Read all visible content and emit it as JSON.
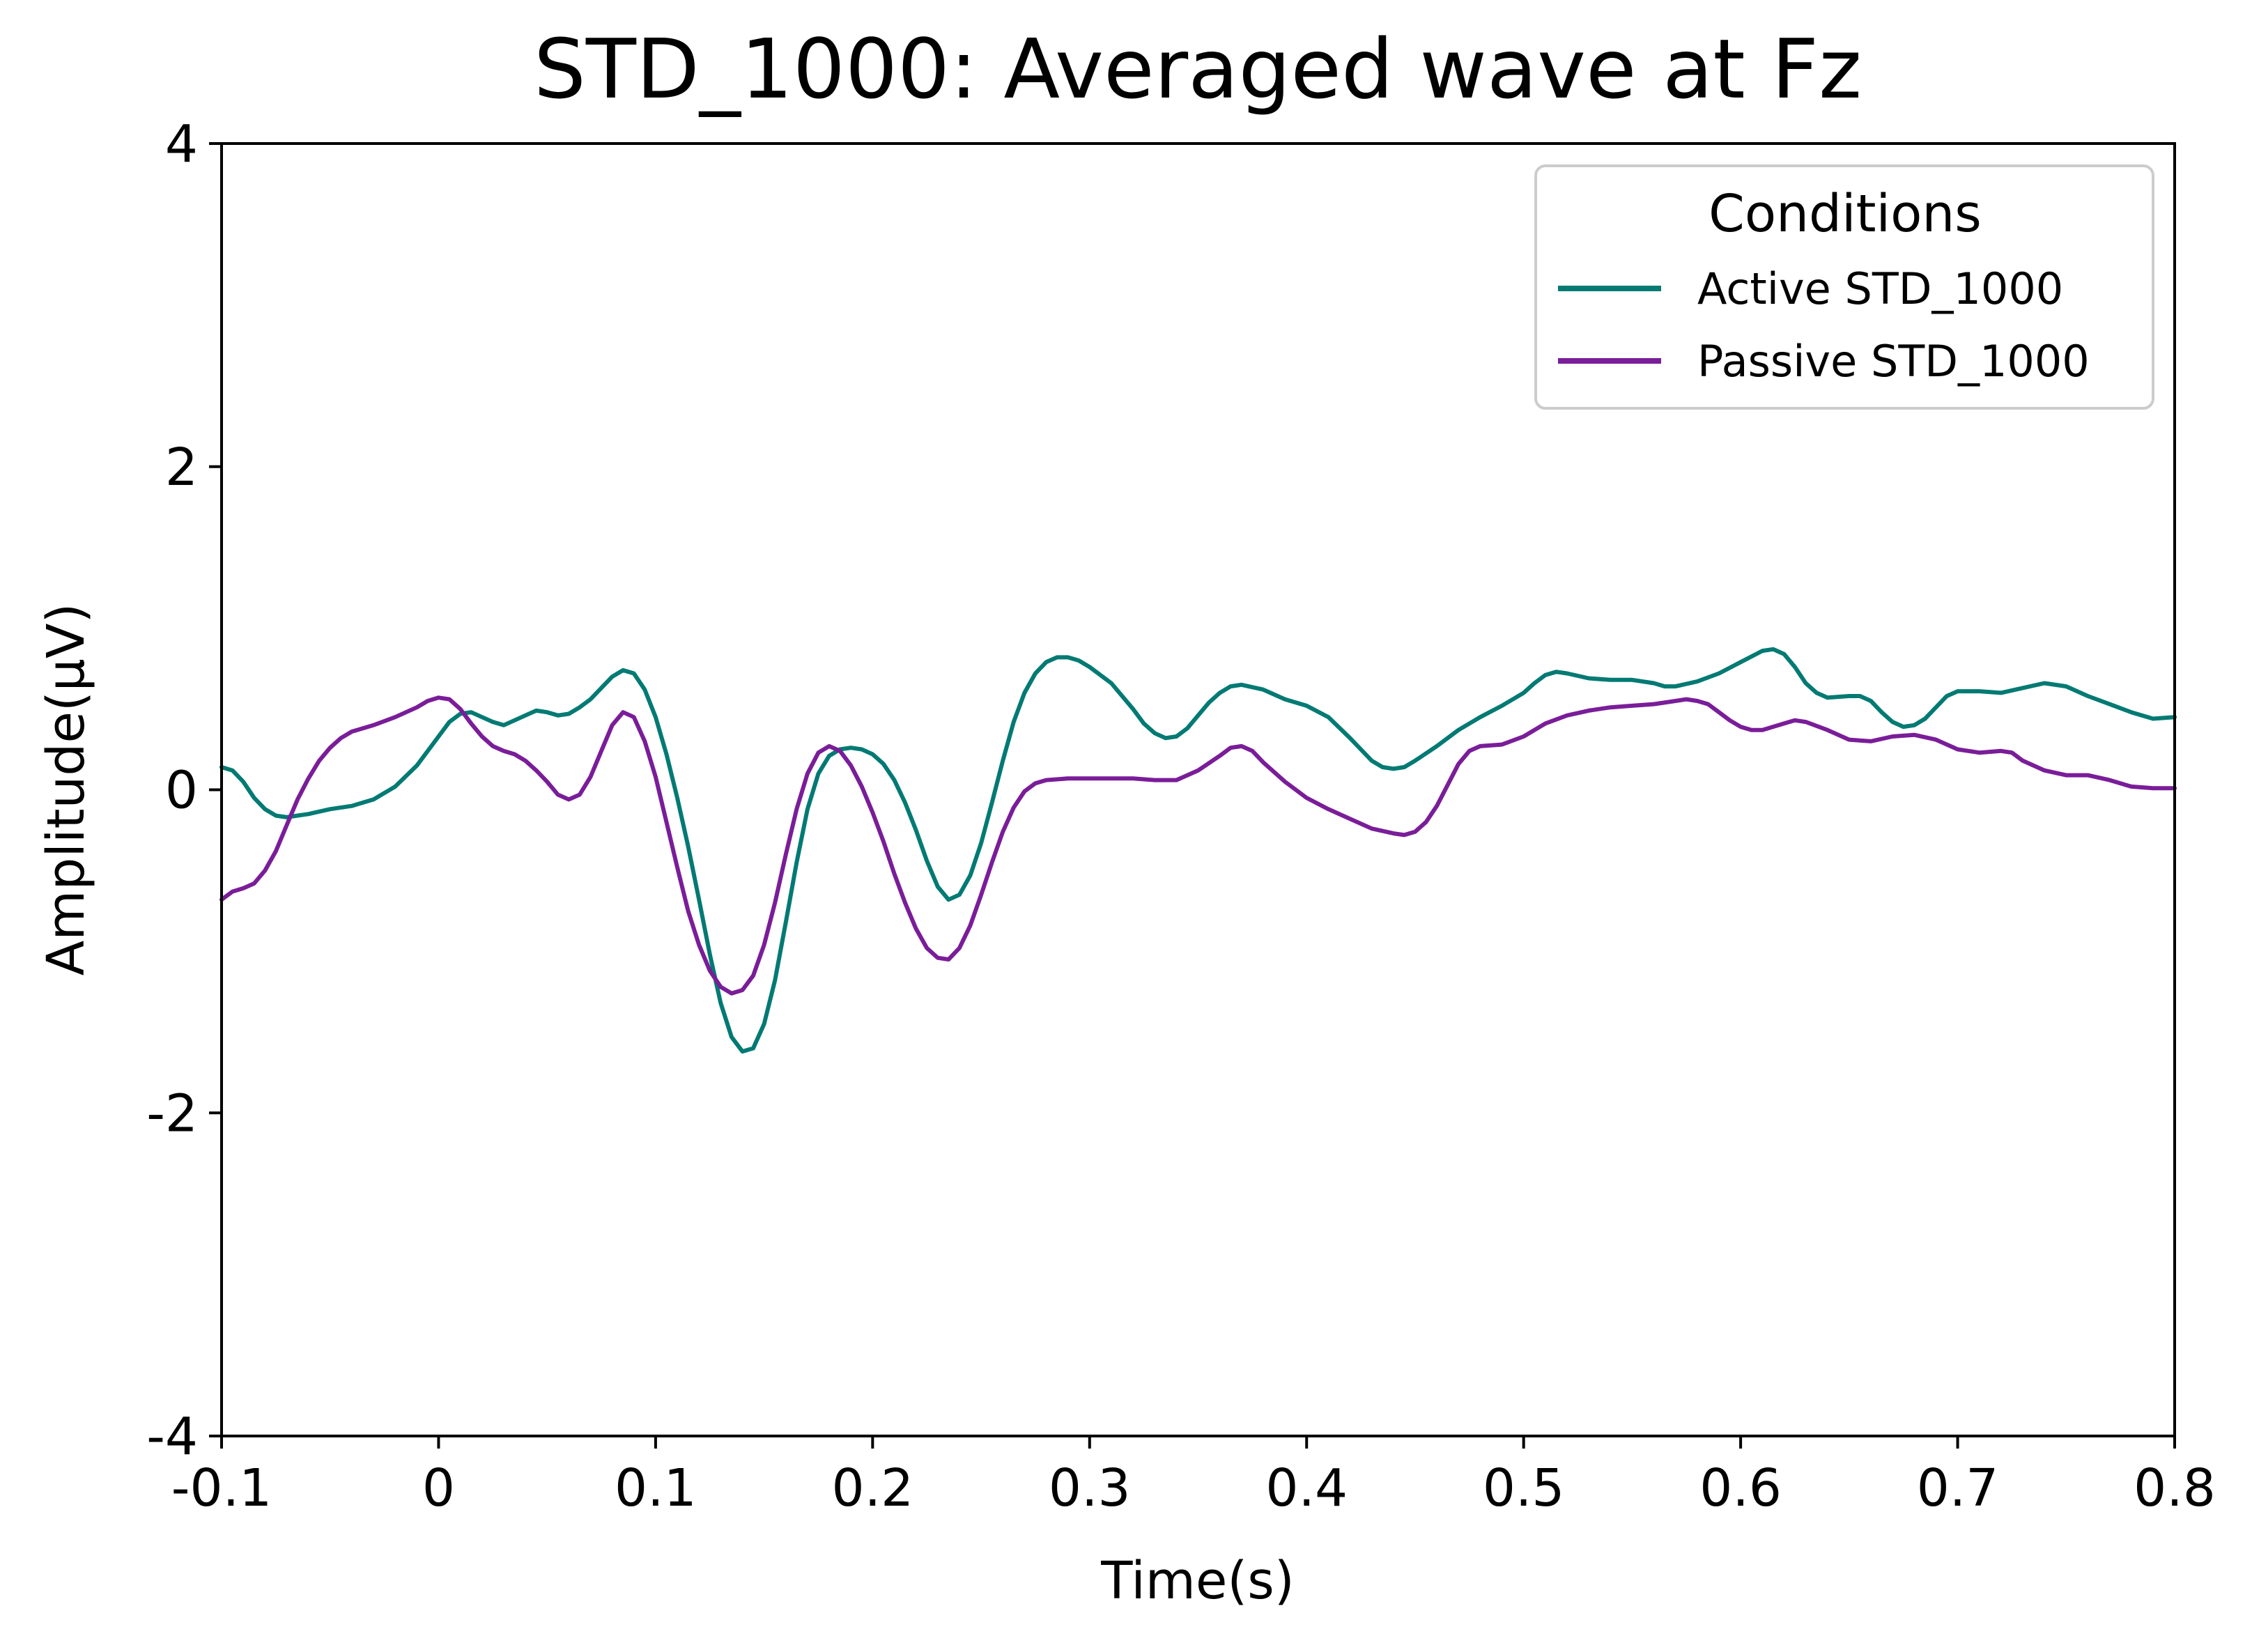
{
  "chart_data": {
    "type": "line",
    "title": "STD_1000: Averaged wave at Fz",
    "xlabel": "Time(s)",
    "ylabel": "Amplitude(μV)",
    "xlim": [
      -0.1,
      0.8
    ],
    "ylim": [
      -4,
      4
    ],
    "x_ticks": [
      -0.1,
      0.0,
      0.1,
      0.2,
      0.3,
      0.4,
      0.5,
      0.6,
      0.7,
      0.8
    ],
    "x_tick_labels": [
      "-0.1",
      "0",
      "0.1",
      "0.2",
      "0.3",
      "0.4",
      "0.5",
      "0.6",
      "0.7",
      "0.8"
    ],
    "y_ticks": [
      4,
      2,
      0,
      -2,
      -4
    ],
    "y_tick_labels": [
      "4",
      "2",
      "0",
      "-2",
      "-4"
    ],
    "grid": false,
    "legend": {
      "title": "Conditions",
      "position": "top-right"
    },
    "series": [
      {
        "name": "Active STD_1000",
        "color": "#007a73",
        "points": [
          [
            -0.1,
            0.14
          ],
          [
            -0.095,
            0.12
          ],
          [
            -0.09,
            0.05
          ],
          [
            -0.085,
            -0.05
          ],
          [
            -0.08,
            -0.12
          ],
          [
            -0.075,
            -0.16
          ],
          [
            -0.07,
            -0.17
          ],
          [
            -0.06,
            -0.15
          ],
          [
            -0.05,
            -0.12
          ],
          [
            -0.04,
            -0.1
          ],
          [
            -0.03,
            -0.06
          ],
          [
            -0.02,
            0.02
          ],
          [
            -0.01,
            0.15
          ],
          [
            0.0,
            0.33
          ],
          [
            0.005,
            0.42
          ],
          [
            0.01,
            0.47
          ],
          [
            0.015,
            0.48
          ],
          [
            0.02,
            0.45
          ],
          [
            0.025,
            0.42
          ],
          [
            0.03,
            0.4
          ],
          [
            0.035,
            0.43
          ],
          [
            0.04,
            0.46
          ],
          [
            0.045,
            0.49
          ],
          [
            0.05,
            0.48
          ],
          [
            0.055,
            0.46
          ],
          [
            0.06,
            0.47
          ],
          [
            0.065,
            0.51
          ],
          [
            0.07,
            0.56
          ],
          [
            0.075,
            0.63
          ],
          [
            0.08,
            0.7
          ],
          [
            0.085,
            0.74
          ],
          [
            0.09,
            0.72
          ],
          [
            0.095,
            0.62
          ],
          [
            0.1,
            0.45
          ],
          [
            0.105,
            0.22
          ],
          [
            0.11,
            -0.05
          ],
          [
            0.115,
            -0.35
          ],
          [
            0.12,
            -0.68
          ],
          [
            0.125,
            -1.02
          ],
          [
            0.13,
            -1.32
          ],
          [
            0.135,
            -1.53
          ],
          [
            0.14,
            -1.62
          ],
          [
            0.145,
            -1.6
          ],
          [
            0.15,
            -1.45
          ],
          [
            0.155,
            -1.18
          ],
          [
            0.16,
            -0.82
          ],
          [
            0.165,
            -0.45
          ],
          [
            0.17,
            -0.12
          ],
          [
            0.175,
            0.1
          ],
          [
            0.18,
            0.21
          ],
          [
            0.185,
            0.25
          ],
          [
            0.19,
            0.26
          ],
          [
            0.195,
            0.25
          ],
          [
            0.2,
            0.22
          ],
          [
            0.205,
            0.16
          ],
          [
            0.21,
            0.06
          ],
          [
            0.215,
            -0.08
          ],
          [
            0.22,
            -0.25
          ],
          [
            0.225,
            -0.44
          ],
          [
            0.23,
            -0.6
          ],
          [
            0.235,
            -0.68
          ],
          [
            0.24,
            -0.65
          ],
          [
            0.245,
            -0.53
          ],
          [
            0.25,
            -0.33
          ],
          [
            0.255,
            -0.08
          ],
          [
            0.26,
            0.18
          ],
          [
            0.265,
            0.42
          ],
          [
            0.27,
            0.6
          ],
          [
            0.275,
            0.72
          ],
          [
            0.28,
            0.79
          ],
          [
            0.285,
            0.82
          ],
          [
            0.29,
            0.82
          ],
          [
            0.295,
            0.8
          ],
          [
            0.3,
            0.76
          ],
          [
            0.31,
            0.66
          ],
          [
            0.32,
            0.5
          ],
          [
            0.325,
            0.41
          ],
          [
            0.33,
            0.35
          ],
          [
            0.335,
            0.32
          ],
          [
            0.34,
            0.33
          ],
          [
            0.345,
            0.38
          ],
          [
            0.35,
            0.46
          ],
          [
            0.355,
            0.54
          ],
          [
            0.36,
            0.6
          ],
          [
            0.365,
            0.64
          ],
          [
            0.37,
            0.65
          ],
          [
            0.38,
            0.62
          ],
          [
            0.39,
            0.56
          ],
          [
            0.4,
            0.52
          ],
          [
            0.41,
            0.45
          ],
          [
            0.42,
            0.32
          ],
          [
            0.43,
            0.18
          ],
          [
            0.435,
            0.14
          ],
          [
            0.44,
            0.13
          ],
          [
            0.445,
            0.14
          ],
          [
            0.45,
            0.18
          ],
          [
            0.46,
            0.27
          ],
          [
            0.47,
            0.37
          ],
          [
            0.48,
            0.45
          ],
          [
            0.49,
            0.52
          ],
          [
            0.5,
            0.6
          ],
          [
            0.505,
            0.66
          ],
          [
            0.51,
            0.71
          ],
          [
            0.515,
            0.73
          ],
          [
            0.52,
            0.72
          ],
          [
            0.53,
            0.69
          ],
          [
            0.54,
            0.68
          ],
          [
            0.55,
            0.68
          ],
          [
            0.56,
            0.66
          ],
          [
            0.565,
            0.64
          ],
          [
            0.57,
            0.64
          ],
          [
            0.58,
            0.67
          ],
          [
            0.59,
            0.72
          ],
          [
            0.6,
            0.79
          ],
          [
            0.61,
            0.86
          ],
          [
            0.615,
            0.87
          ],
          [
            0.62,
            0.84
          ],
          [
            0.625,
            0.76
          ],
          [
            0.63,
            0.66
          ],
          [
            0.635,
            0.6
          ],
          [
            0.64,
            0.57
          ],
          [
            0.65,
            0.58
          ],
          [
            0.655,
            0.58
          ],
          [
            0.66,
            0.55
          ],
          [
            0.665,
            0.48
          ],
          [
            0.67,
            0.42
          ],
          [
            0.675,
            0.39
          ],
          [
            0.68,
            0.4
          ],
          [
            0.685,
            0.44
          ],
          [
            0.69,
            0.51
          ],
          [
            0.695,
            0.58
          ],
          [
            0.7,
            0.61
          ],
          [
            0.71,
            0.61
          ],
          [
            0.72,
            0.6
          ],
          [
            0.73,
            0.63
          ],
          [
            0.74,
            0.66
          ],
          [
            0.75,
            0.64
          ],
          [
            0.76,
            0.58
          ],
          [
            0.77,
            0.53
          ],
          [
            0.78,
            0.48
          ],
          [
            0.79,
            0.44
          ],
          [
            0.8,
            0.45
          ]
        ]
      },
      {
        "name": "Passive STD_1000",
        "color": "#7a1d99",
        "points": [
          [
            -0.1,
            -0.68
          ],
          [
            -0.095,
            -0.63
          ],
          [
            -0.09,
            -0.61
          ],
          [
            -0.085,
            -0.58
          ],
          [
            -0.08,
            -0.5
          ],
          [
            -0.075,
            -0.38
          ],
          [
            -0.07,
            -0.22
          ],
          [
            -0.065,
            -0.06
          ],
          [
            -0.06,
            0.07
          ],
          [
            -0.055,
            0.18
          ],
          [
            -0.05,
            0.26
          ],
          [
            -0.045,
            0.32
          ],
          [
            -0.04,
            0.36
          ],
          [
            -0.03,
            0.4
          ],
          [
            -0.02,
            0.45
          ],
          [
            -0.01,
            0.51
          ],
          [
            -0.005,
            0.55
          ],
          [
            0.0,
            0.57
          ],
          [
            0.005,
            0.56
          ],
          [
            0.01,
            0.5
          ],
          [
            0.015,
            0.41
          ],
          [
            0.02,
            0.33
          ],
          [
            0.025,
            0.27
          ],
          [
            0.03,
            0.24
          ],
          [
            0.035,
            0.22
          ],
          [
            0.04,
            0.18
          ],
          [
            0.045,
            0.12
          ],
          [
            0.05,
            0.05
          ],
          [
            0.055,
            -0.03
          ],
          [
            0.06,
            -0.06
          ],
          [
            0.065,
            -0.03
          ],
          [
            0.07,
            0.08
          ],
          [
            0.075,
            0.24
          ],
          [
            0.08,
            0.4
          ],
          [
            0.085,
            0.48
          ],
          [
            0.09,
            0.45
          ],
          [
            0.095,
            0.3
          ],
          [
            0.1,
            0.08
          ],
          [
            0.105,
            -0.2
          ],
          [
            0.11,
            -0.48
          ],
          [
            0.115,
            -0.75
          ],
          [
            0.12,
            -0.96
          ],
          [
            0.125,
            -1.12
          ],
          [
            0.13,
            -1.22
          ],
          [
            0.135,
            -1.26
          ],
          [
            0.14,
            -1.24
          ],
          [
            0.145,
            -1.15
          ],
          [
            0.15,
            -0.96
          ],
          [
            0.155,
            -0.7
          ],
          [
            0.16,
            -0.4
          ],
          [
            0.165,
            -0.12
          ],
          [
            0.17,
            0.1
          ],
          [
            0.175,
            0.23
          ],
          [
            0.18,
            0.27
          ],
          [
            0.185,
            0.24
          ],
          [
            0.19,
            0.15
          ],
          [
            0.195,
            0.02
          ],
          [
            0.2,
            -0.14
          ],
          [
            0.205,
            -0.32
          ],
          [
            0.21,
            -0.52
          ],
          [
            0.215,
            -0.7
          ],
          [
            0.22,
            -0.86
          ],
          [
            0.225,
            -0.98
          ],
          [
            0.23,
            -1.04
          ],
          [
            0.235,
            -1.05
          ],
          [
            0.24,
            -0.98
          ],
          [
            0.245,
            -0.84
          ],
          [
            0.25,
            -0.65
          ],
          [
            0.255,
            -0.45
          ],
          [
            0.26,
            -0.26
          ],
          [
            0.265,
            -0.11
          ],
          [
            0.27,
            -0.01
          ],
          [
            0.275,
            0.04
          ],
          [
            0.28,
            0.06
          ],
          [
            0.29,
            0.07
          ],
          [
            0.3,
            0.07
          ],
          [
            0.31,
            0.07
          ],
          [
            0.32,
            0.07
          ],
          [
            0.33,
            0.06
          ],
          [
            0.34,
            0.06
          ],
          [
            0.35,
            0.12
          ],
          [
            0.36,
            0.21
          ],
          [
            0.365,
            0.26
          ],
          [
            0.37,
            0.27
          ],
          [
            0.375,
            0.24
          ],
          [
            0.38,
            0.17
          ],
          [
            0.39,
            0.05
          ],
          [
            0.4,
            -0.05
          ],
          [
            0.41,
            -0.12
          ],
          [
            0.42,
            -0.18
          ],
          [
            0.43,
            -0.24
          ],
          [
            0.44,
            -0.27
          ],
          [
            0.445,
            -0.28
          ],
          [
            0.45,
            -0.26
          ],
          [
            0.455,
            -0.2
          ],
          [
            0.46,
            -0.1
          ],
          [
            0.465,
            0.03
          ],
          [
            0.47,
            0.16
          ],
          [
            0.475,
            0.24
          ],
          [
            0.48,
            0.27
          ],
          [
            0.49,
            0.28
          ],
          [
            0.5,
            0.33
          ],
          [
            0.51,
            0.41
          ],
          [
            0.52,
            0.46
          ],
          [
            0.53,
            0.49
          ],
          [
            0.54,
            0.51
          ],
          [
            0.55,
            0.52
          ],
          [
            0.56,
            0.53
          ],
          [
            0.57,
            0.55
          ],
          [
            0.575,
            0.56
          ],
          [
            0.58,
            0.55
          ],
          [
            0.585,
            0.53
          ],
          [
            0.59,
            0.48
          ],
          [
            0.595,
            0.43
          ],
          [
            0.6,
            0.39
          ],
          [
            0.605,
            0.37
          ],
          [
            0.61,
            0.37
          ],
          [
            0.62,
            0.41
          ],
          [
            0.625,
            0.43
          ],
          [
            0.63,
            0.42
          ],
          [
            0.64,
            0.37
          ],
          [
            0.65,
            0.31
          ],
          [
            0.66,
            0.3
          ],
          [
            0.67,
            0.33
          ],
          [
            0.68,
            0.34
          ],
          [
            0.69,
            0.31
          ],
          [
            0.7,
            0.25
          ],
          [
            0.71,
            0.23
          ],
          [
            0.72,
            0.24
          ],
          [
            0.725,
            0.23
          ],
          [
            0.73,
            0.18
          ],
          [
            0.74,
            0.12
          ],
          [
            0.75,
            0.09
          ],
          [
            0.76,
            0.09
          ],
          [
            0.77,
            0.06
          ],
          [
            0.78,
            0.02
          ],
          [
            0.79,
            0.01
          ],
          [
            0.8,
            0.01
          ]
        ]
      }
    ]
  }
}
